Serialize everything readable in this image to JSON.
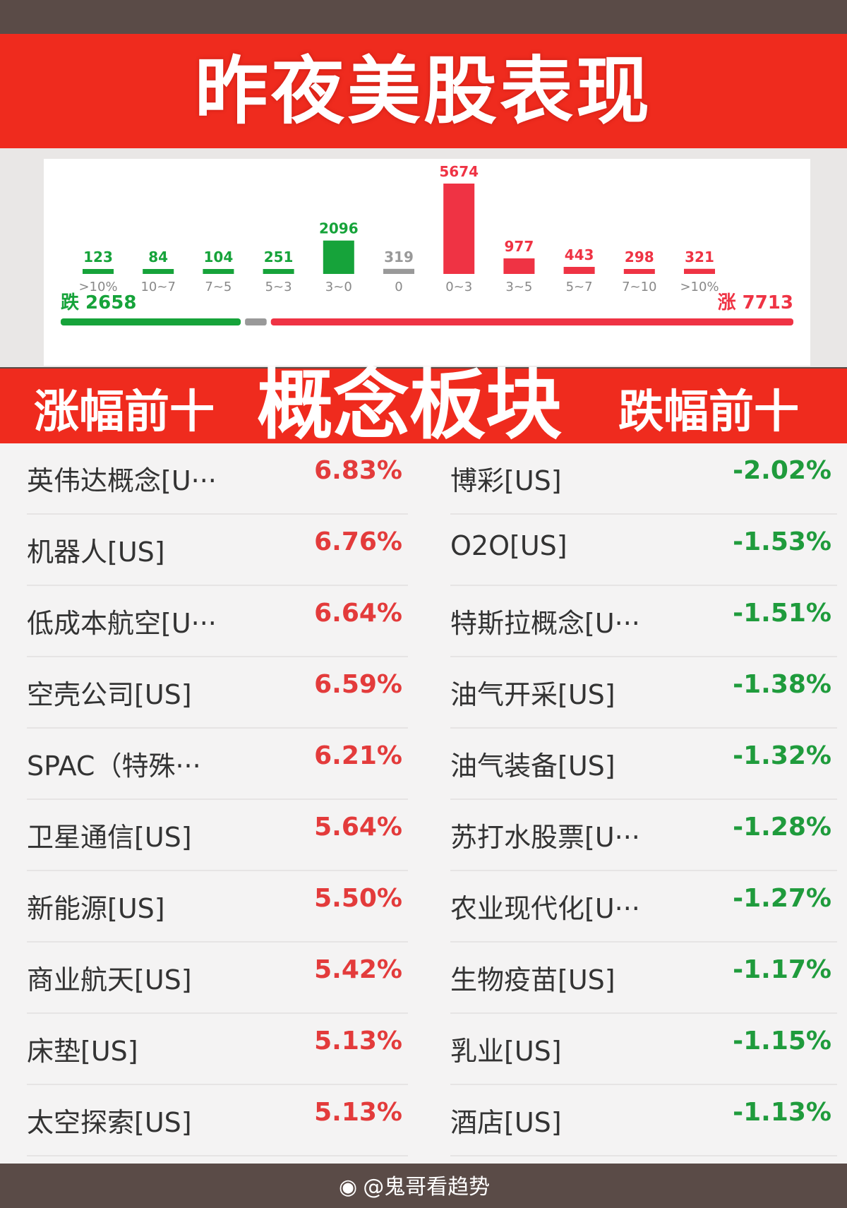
{
  "title": "昨夜美股表现",
  "colors": {
    "red": "#ef2b1e",
    "bar_red": "#ef3344",
    "bar_green": "#16a33a",
    "gray": "#999999"
  },
  "chart_data": {
    "type": "bar",
    "categories": [
      ">10%",
      "10~7",
      "7~5",
      "5~3",
      "3~0",
      "0",
      "0~3",
      "3~5",
      "5~7",
      "7~10",
      ">10%"
    ],
    "values": [
      123,
      84,
      104,
      251,
      2096,
      319,
      5674,
      977,
      443,
      298,
      321
    ],
    "bar_colors": [
      "green",
      "green",
      "green",
      "green",
      "green",
      "gray",
      "red",
      "red",
      "red",
      "red",
      "red"
    ],
    "ylim": [
      0,
      5674
    ]
  },
  "summary": {
    "down_label": "跌",
    "down_value": "2658",
    "up_label": "涨",
    "up_value": "7713",
    "down_count": 2658,
    "flat_count": 319,
    "up_count": 7713
  },
  "section": {
    "left_label": "涨幅前十",
    "center_label": "概念板块",
    "right_label": "跌幅前十"
  },
  "gainers": [
    {
      "name": "英伟达概念[U···",
      "pct": "6.83%"
    },
    {
      "name": "机器人[US]",
      "pct": "6.76%"
    },
    {
      "name": "低成本航空[U···",
      "pct": "6.64%"
    },
    {
      "name": "空壳公司[US]",
      "pct": "6.59%"
    },
    {
      "name": "SPAC（特殊···",
      "pct": "6.21%"
    },
    {
      "name": "卫星通信[US]",
      "pct": "5.64%"
    },
    {
      "name": "新能源[US]",
      "pct": "5.50%"
    },
    {
      "name": "商业航天[US]",
      "pct": "5.42%"
    },
    {
      "name": "床垫[US]",
      "pct": "5.13%"
    },
    {
      "name": "太空探索[US]",
      "pct": "5.13%"
    }
  ],
  "losers": [
    {
      "name": "博彩[US]",
      "pct": "-2.02%"
    },
    {
      "name": "O2O[US]",
      "pct": "-1.53%"
    },
    {
      "name": "特斯拉概念[U···",
      "pct": "-1.51%"
    },
    {
      "name": "油气开采[US]",
      "pct": "-1.38%"
    },
    {
      "name": "油气装备[US]",
      "pct": "-1.32%"
    },
    {
      "name": "苏打水股票[U···",
      "pct": "-1.28%"
    },
    {
      "name": "农业现代化[U···",
      "pct": "-1.27%"
    },
    {
      "name": "生物疫苗[US]",
      "pct": "-1.17%"
    },
    {
      "name": "乳业[US]",
      "pct": "-1.15%"
    },
    {
      "name": "酒店[US]",
      "pct": "-1.13%"
    }
  ],
  "watermark": {
    "logo": "weibo-logo-icon",
    "text": "@鬼哥看趋势"
  }
}
